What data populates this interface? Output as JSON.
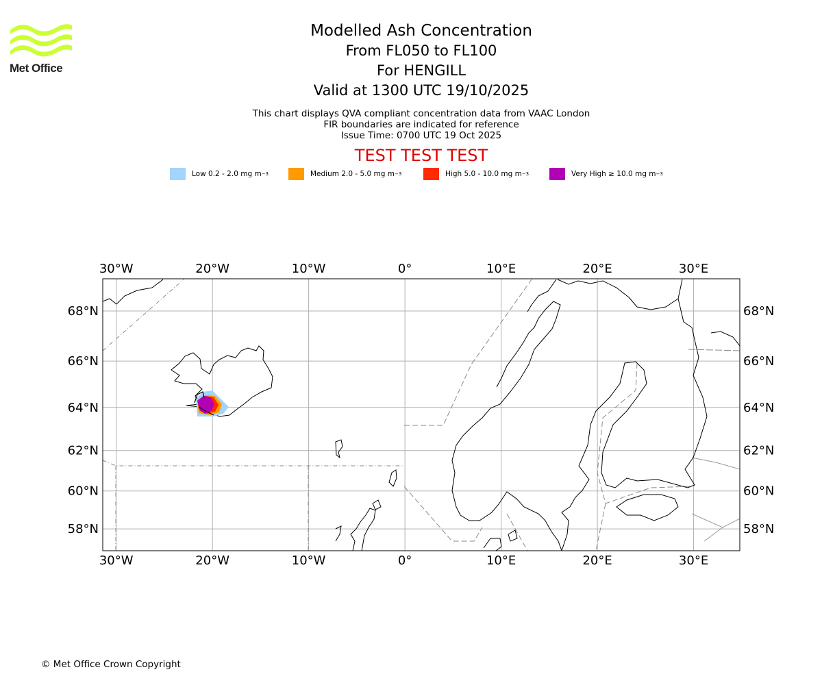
{
  "header": {
    "logo_text": "Met Office",
    "title": "Modelled Ash Concentration",
    "level_range": "From FL050 to FL100",
    "volcano": "For HENGILL",
    "valid_time": "Valid at 1300 UTC 19/10/2025"
  },
  "notes": {
    "line1": "This chart displays QVA compliant concentration data from VAAC London",
    "line2": "FIR boundaries are indicated for reference",
    "issue_time": "Issue Time: 0700 UTC 19 Oct 2025"
  },
  "test_banner": "TEST TEST TEST",
  "legend": [
    {
      "label": "Low 0.2 - 2.0 mg m",
      "exponent": "−3",
      "color": "#a3d4fb"
    },
    {
      "label": "Medium 2.0 - 5.0 mg m",
      "exponent": "−3",
      "color": "#ff9a00"
    },
    {
      "label": "High 5.0 - 10.0 mg m",
      "exponent": "−3",
      "color": "#ff2a00"
    },
    {
      "label": "Very High  ≥  10.0 mg m",
      "exponent": "−3",
      "color": "#b100b5"
    }
  ],
  "map": {
    "lon_range": [
      -31.4,
      34.8
    ],
    "lat_range": [
      56.8,
      69.2
    ],
    "lon_ticks": [
      {
        "value": -30,
        "label": "30°W"
      },
      {
        "value": -20,
        "label": "20°W"
      },
      {
        "value": -10,
        "label": "10°W"
      },
      {
        "value": 0,
        "label": "0°"
      },
      {
        "value": 10,
        "label": "10°E"
      },
      {
        "value": 20,
        "label": "20°E"
      },
      {
        "value": 30,
        "label": "30°E"
      }
    ],
    "lat_ticks": [
      {
        "value": 58,
        "label": "58°N"
      },
      {
        "value": 60,
        "label": "60°N"
      },
      {
        "value": 62,
        "label": "62°N"
      },
      {
        "value": 64,
        "label": "64°N"
      },
      {
        "value": 66,
        "label": "66°N"
      },
      {
        "value": 68,
        "label": "68°N"
      }
    ],
    "ash_area": {
      "lon": -20.5,
      "lat": 64.0
    }
  },
  "footer": {
    "copyright": "© Met Office Crown Copyright"
  },
  "colors": {
    "grid": "#b0b0b0",
    "fir": "#8a8a8a",
    "coast": "#000000",
    "logo": "#ccff33",
    "test": "#e00000"
  }
}
